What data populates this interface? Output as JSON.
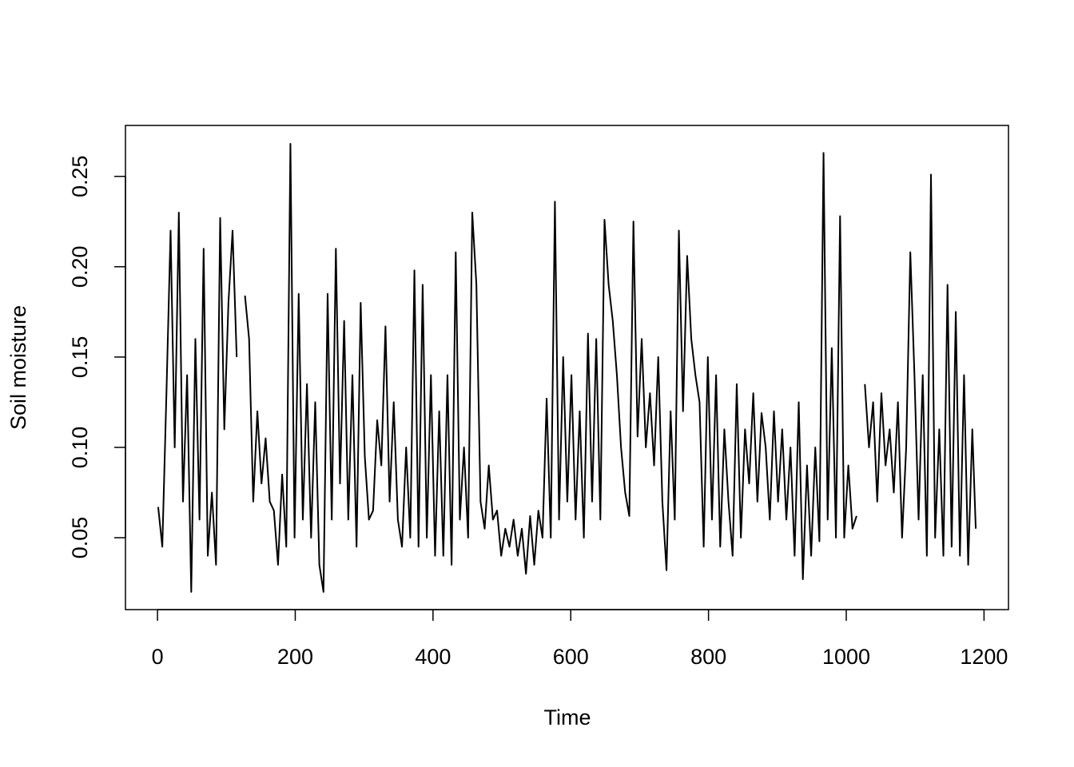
{
  "chart_data": {
    "type": "line",
    "xlabel": "Time",
    "ylabel": "Soil moisture",
    "xlim": [
      -46.5,
      1235.5
    ],
    "ylim": [
      0.0102,
      0.2782
    ],
    "xticks": [
      0,
      200,
      400,
      600,
      800,
      1000,
      1200
    ],
    "yticks": [
      0.05,
      {
        "value": 0.1,
        "label": "0.10"
      },
      0.15,
      {
        "value": 0.2,
        "label": "0.20"
      },
      0.25
    ],
    "grid": false,
    "series": [
      {
        "color": "#000000",
        "x": [
          1,
          7,
          13,
          19,
          25,
          31,
          37,
          43,
          49,
          55,
          61,
          67,
          73,
          79,
          85,
          91,
          97,
          103,
          109,
          115,
          121,
          127,
          133,
          139,
          145,
          151,
          157,
          163,
          169,
          175,
          181,
          187,
          193,
          199,
          205,
          211,
          217,
          223,
          229,
          235,
          241,
          247,
          253,
          259,
          265,
          271,
          277,
          283,
          289,
          295,
          301,
          307,
          313,
          319,
          325,
          331,
          337,
          343,
          349,
          355,
          361,
          367,
          373,
          379,
          385,
          391,
          397,
          403,
          409,
          415,
          421,
          427,
          433,
          439,
          445,
          451,
          457,
          463,
          469,
          475,
          481,
          487,
          493,
          499,
          505,
          511,
          517,
          523,
          529,
          535,
          541,
          547,
          553,
          559,
          565,
          571,
          577,
          583,
          589,
          595,
          601,
          607,
          613,
          619,
          625,
          631,
          637,
          643,
          649,
          655,
          661,
          667,
          673,
          679,
          685,
          691,
          697,
          703,
          709,
          715,
          721,
          727,
          733,
          739,
          745,
          751,
          757,
          763,
          769,
          775,
          781,
          787,
          793,
          799,
          805,
          811,
          817,
          823,
          829,
          835,
          841,
          847,
          853,
          859,
          865,
          871,
          877,
          883,
          889,
          895,
          901,
          907,
          913,
          919,
          925,
          931,
          937,
          943,
          949,
          955,
          961,
          967,
          973,
          979,
          985,
          991,
          997,
          1003,
          1009,
          1015,
          1021,
          1027,
          1033,
          1039,
          1045,
          1051,
          1057,
          1063,
          1069,
          1075,
          1081,
          1087,
          1093,
          1099,
          1105,
          1111,
          1117,
          1123,
          1129,
          1135,
          1141,
          1147,
          1153,
          1159,
          1165,
          1171,
          1177,
          1183,
          1188
        ],
        "values": [
          0.067,
          0.045,
          0.13,
          0.22,
          0.1,
          0.23,
          0.07,
          0.14,
          0.02,
          0.16,
          0.06,
          0.21,
          0.04,
          0.075,
          0.035,
          0.227,
          0.11,
          0.18,
          0.22,
          0.15,
          null,
          0.184,
          0.16,
          0.07,
          0.12,
          0.08,
          0.105,
          0.07,
          0.065,
          0.035,
          0.085,
          0.045,
          0.268,
          0.05,
          0.185,
          0.06,
          0.135,
          0.05,
          0.125,
          0.035,
          0.02,
          0.185,
          0.06,
          0.21,
          0.08,
          0.17,
          0.06,
          0.14,
          0.045,
          0.18,
          0.095,
          0.06,
          0.065,
          0.115,
          0.09,
          0.167,
          0.07,
          0.125,
          0.06,
          0.045,
          0.1,
          0.05,
          0.198,
          0.045,
          0.19,
          0.05,
          0.14,
          0.04,
          0.12,
          0.04,
          0.14,
          0.035,
          0.208,
          0.06,
          0.1,
          0.05,
          0.23,
          0.19,
          0.07,
          0.055,
          0.09,
          0.06,
          0.065,
          0.04,
          0.055,
          0.045,
          0.06,
          0.04,
          0.055,
          0.03,
          0.062,
          0.035,
          0.065,
          0.05,
          0.127,
          0.05,
          0.236,
          0.06,
          0.15,
          0.07,
          0.14,
          0.06,
          0.12,
          0.05,
          0.163,
          0.07,
          0.16,
          0.06,
          0.226,
          0.19,
          0.17,
          0.14,
          0.1,
          0.075,
          0.062,
          0.225,
          0.106,
          0.16,
          0.1,
          0.13,
          0.09,
          0.15,
          0.07,
          0.032,
          0.12,
          0.06,
          0.22,
          0.12,
          0.206,
          0.16,
          0.14,
          0.125,
          0.045,
          0.15,
          0.06,
          0.14,
          0.045,
          0.11,
          0.07,
          0.04,
          0.135,
          0.05,
          0.11,
          0.08,
          0.13,
          0.07,
          0.119,
          0.1,
          0.06,
          0.12,
          0.07,
          0.11,
          0.06,
          0.1,
          0.04,
          0.125,
          0.027,
          0.09,
          0.04,
          0.1,
          0.048,
          0.263,
          0.06,
          0.155,
          0.05,
          0.228,
          0.05,
          0.09,
          0.055,
          0.062,
          null,
          0.135,
          0.1,
          0.125,
          0.07,
          0.13,
          0.09,
          0.11,
          0.075,
          0.125,
          0.05,
          0.1,
          0.208,
          0.14,
          0.06,
          0.14,
          0.04,
          0.251,
          0.05,
          0.11,
          0.04,
          0.19,
          0.045,
          0.175,
          0.04,
          0.14,
          0.035,
          0.11,
          0.055
        ]
      }
    ]
  }
}
